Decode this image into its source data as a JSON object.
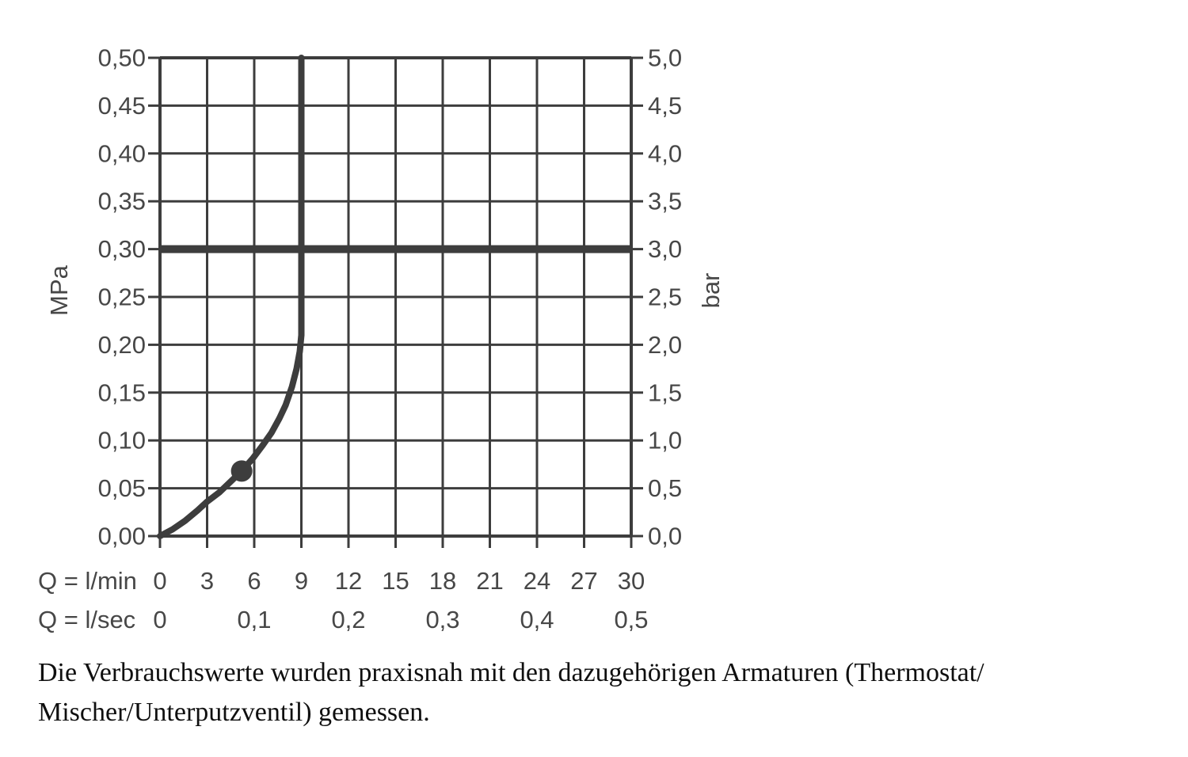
{
  "chart_data": {
    "type": "line",
    "y_left_axis": {
      "label": "MPa",
      "min": 0,
      "max": 0.5,
      "step": 0.05,
      "tick_labels": [
        "0,00",
        "0,05",
        "0,10",
        "0,15",
        "0,20",
        "0,25",
        "0,30",
        "0,35",
        "0,40",
        "0,45",
        "0,50"
      ]
    },
    "y_right_axis": {
      "label": "bar",
      "min": 0,
      "max": 5,
      "step": 0.5,
      "tick_labels": [
        "0,0",
        "0,5",
        "1,0",
        "1,5",
        "2,0",
        "2,5",
        "3,0",
        "3,5",
        "4,0",
        "4,5",
        "5,0"
      ]
    },
    "x_axis": {
      "min": 0,
      "max": 30,
      "step": 3,
      "row1_label": "Q = l/min",
      "row1_tick_labels": [
        "0",
        "3",
        "6",
        "9",
        "12",
        "15",
        "18",
        "21",
        "24",
        "27",
        "30"
      ],
      "row2_label": "Q = l/sec",
      "row2_ticks": [
        {
          "x": 0,
          "label": "0"
        },
        {
          "x": 6,
          "label": "0,1"
        },
        {
          "x": 12,
          "label": "0,2"
        },
        {
          "x": 18,
          "label": "0,3"
        },
        {
          "x": 24,
          "label": "0,4"
        },
        {
          "x": 30,
          "label": "0,5"
        }
      ]
    },
    "grid": true,
    "legend": false,
    "series": [
      {
        "name": "flow-pressure-curve",
        "points_lmin_mpa": [
          [
            0,
            0
          ],
          [
            0.8,
            0.007
          ],
          [
            1.6,
            0.016
          ],
          [
            2.4,
            0.027
          ],
          [
            3,
            0.036
          ],
          [
            3.8,
            0.046
          ],
          [
            4.5,
            0.057
          ],
          [
            5.2,
            0.068
          ],
          [
            5.9,
            0.081
          ],
          [
            6.5,
            0.094
          ],
          [
            7.1,
            0.108
          ],
          [
            7.6,
            0.123
          ],
          [
            8.0,
            0.137
          ],
          [
            8.4,
            0.156
          ],
          [
            8.7,
            0.175
          ],
          [
            8.9,
            0.193
          ],
          [
            9.0,
            0.21
          ],
          [
            9.0,
            0.5
          ]
        ]
      }
    ],
    "marker_point": {
      "x_lmin": 5.2,
      "y_mpa": 0.068
    },
    "reference_lines": {
      "horizontal_pressure_mpa": 0.3,
      "vertical_flow_dashed": {
        "x_lmin": 9,
        "from_mpa": 0,
        "to_mpa": 0.185
      }
    },
    "colors": {
      "stroke": "#3d3d3d",
      "axis_text": "#474747",
      "background": "#ffffff"
    }
  },
  "caption": {
    "lines": [
      "Die Verbrauchswerte wurden praxisnah mit den dazugehörigen Armaturen (Thermostat/",
      "Mischer/Unterputzventil) gemessen."
    ]
  }
}
